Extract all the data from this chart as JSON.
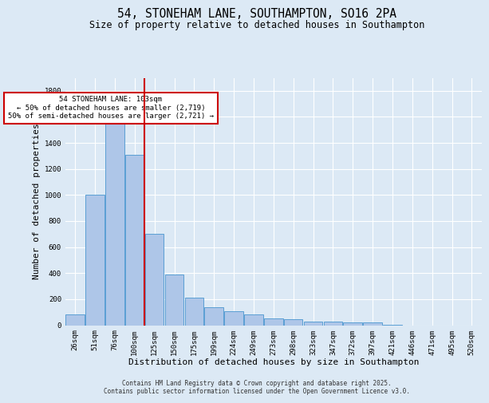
{
  "title": "54, STONEHAM LANE, SOUTHAMPTON, SO16 2PA",
  "subtitle": "Size of property relative to detached houses in Southampton",
  "xlabel": "Distribution of detached houses by size in Southampton",
  "ylabel": "Number of detached properties",
  "categories": [
    "26sqm",
    "51sqm",
    "76sqm",
    "100sqm",
    "125sqm",
    "150sqm",
    "175sqm",
    "199sqm",
    "224sqm",
    "249sqm",
    "273sqm",
    "298sqm",
    "323sqm",
    "347sqm",
    "372sqm",
    "397sqm",
    "421sqm",
    "446sqm",
    "471sqm",
    "495sqm",
    "520sqm"
  ],
  "values": [
    85,
    1000,
    1650,
    1310,
    700,
    390,
    210,
    140,
    105,
    80,
    55,
    45,
    30,
    25,
    20,
    20,
    5,
    0,
    0,
    0,
    0
  ],
  "bar_color": "#aec6e8",
  "bar_edge_color": "#5a9fd4",
  "background_color": "#dce9f5",
  "grid_color": "#ffffff",
  "red_line_index": 3,
  "annotation_text": "54 STONEHAM LANE: 103sqm\n← 50% of detached houses are smaller (2,719)\n50% of semi-detached houses are larger (2,721) →",
  "annotation_box_color": "#ffffff",
  "annotation_box_edge_color": "#cc0000",
  "footer_text": "Contains HM Land Registry data © Crown copyright and database right 2025.\nContains public sector information licensed under the Open Government Licence v3.0.",
  "ylim": [
    0,
    1900
  ],
  "yticks": [
    0,
    200,
    400,
    600,
    800,
    1000,
    1200,
    1400,
    1600,
    1800
  ],
  "title_fontsize": 10.5,
  "subtitle_fontsize": 8.5,
  "tick_fontsize": 6.5,
  "label_fontsize": 8,
  "footer_fontsize": 5.5
}
